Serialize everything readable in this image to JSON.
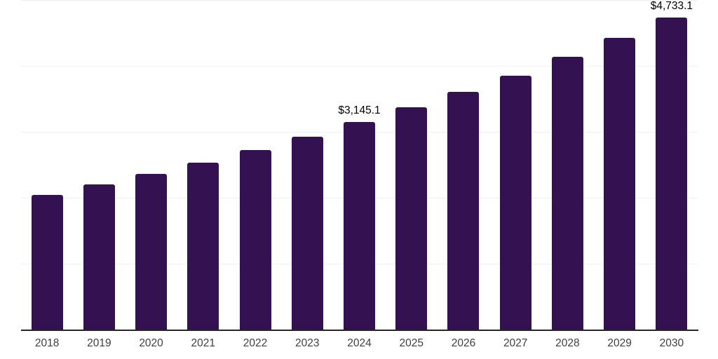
{
  "chart_data": {
    "type": "bar",
    "title": "",
    "xlabel": "",
    "ylabel": "",
    "categories": [
      "2018",
      "2019",
      "2020",
      "2021",
      "2022",
      "2023",
      "2024",
      "2025",
      "2026",
      "2027",
      "2028",
      "2029",
      "2030"
    ],
    "values": [
      2040,
      2200,
      2360,
      2530,
      2725,
      2925,
      3145.1,
      3370,
      3605,
      3850,
      4140,
      4425,
      4733.1
    ],
    "data_labels": [
      "",
      "",
      "",
      "",
      "",
      "",
      "$3,145.1",
      "",
      "",
      "",
      "",
      "",
      "$4,733.1"
    ],
    "ylim": [
      0,
      5000
    ],
    "gridline_step": 1000,
    "grid": true,
    "legend_position": "none",
    "y_axis_tick_labels_visible": false
  },
  "colors": {
    "bar": "#341150",
    "axis": "#262626",
    "gridline": "#f0f0f0",
    "tick_label": "#3f3f3f",
    "data_label": "#000000",
    "background": "#ffffff"
  }
}
